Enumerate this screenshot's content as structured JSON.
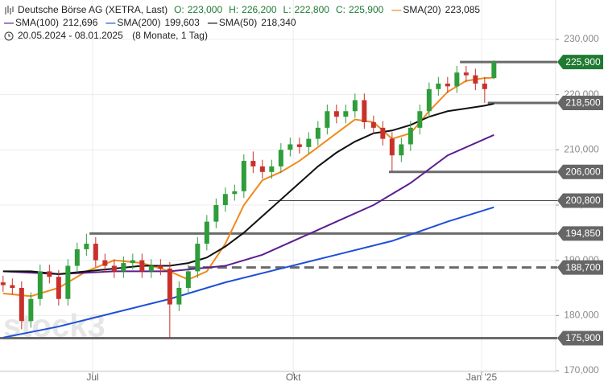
{
  "chart_data": {
    "type": "candlestick",
    "header": {
      "instrument": "Deutsche Börse AG (XETRA, Last)",
      "quote": [
        {
          "label": "O:",
          "value": 223000,
          "text": "223,000"
        },
        {
          "label": "H:",
          "value": 226200,
          "text": "226,200"
        },
        {
          "label": "L:",
          "value": 222800,
          "text": "222,800"
        },
        {
          "label": "C:",
          "value": 225900,
          "text": "225,900"
        }
      ],
      "range": "20.05.2024 - 08.01.2025",
      "span": "(8 Monate, 1 Tag)"
    },
    "watermark": "stock3",
    "xlim": [
      -1,
      179
    ],
    "xticks": [
      {
        "value": 29,
        "label": "Jul"
      },
      {
        "value": 94,
        "label": "Okt"
      },
      {
        "value": 155,
        "label": "Jan '25"
      }
    ],
    "ylim": [
      170000,
      230000
    ],
    "yticks": [
      {
        "value": 170000,
        "label": "170,000"
      },
      {
        "value": 180000,
        "label": "180,000"
      },
      {
        "value": 190000,
        "label": "190,000"
      },
      {
        "value": 200000,
        "label": "200,000"
      },
      {
        "value": 210000,
        "label": "210,000"
      },
      {
        "value": 220000,
        "label": "220,000"
      },
      {
        "value": 230000,
        "label": "230,000"
      }
    ],
    "up_color": "#2e9d3a",
    "down_color": "#c8312b",
    "x": [
      0,
      3,
      6,
      9,
      12,
      15,
      18,
      21,
      24,
      27,
      30,
      33,
      36,
      39,
      42,
      45,
      48,
      51,
      54,
      57,
      60,
      63,
      66,
      69,
      72,
      75,
      78,
      81,
      84,
      87,
      90,
      93,
      96,
      99,
      102,
      105,
      108,
      111,
      114,
      117,
      120,
      123,
      126,
      129,
      132,
      135,
      138,
      141,
      144,
      147,
      150,
      153,
      156,
      159
    ],
    "open": [
      186000,
      185500,
      185000,
      179000,
      183000,
      188000,
      187000,
      183000,
      189000,
      192000,
      193000,
      190000,
      189000,
      188000,
      189500,
      190000,
      188000,
      189000,
      188500,
      182000,
      185000,
      188000,
      193000,
      197000,
      200000,
      202000,
      202500,
      208000,
      207000,
      206000,
      207000,
      210000,
      211000,
      210500,
      212000,
      214000,
      217000,
      216000,
      217000,
      219000,
      215000,
      214000,
      212000,
      209000,
      211000,
      214000,
      217000,
      221000,
      222000,
      221500,
      224000,
      223500,
      222000,
      223000
    ],
    "high": [
      187200,
      186700,
      186200,
      184200,
      189200,
      189200,
      188200,
      190200,
      193200,
      194800,
      194200,
      191200,
      190200,
      190700,
      191200,
      191200,
      190200,
      190200,
      189700,
      186200,
      189200,
      194200,
      198200,
      201200,
      203200,
      203700,
      209200,
      209700,
      208200,
      208200,
      211200,
      212200,
      212200,
      213200,
      215200,
      218200,
      218200,
      218200,
      220200,
      220200,
      216200,
      215200,
      213200,
      212200,
      215200,
      218200,
      222200,
      223200,
      223200,
      225200,
      225200,
      224700,
      223200,
      226200
    ],
    "low": [
      184300,
      183800,
      177500,
      177800,
      181800,
      185800,
      181800,
      181800,
      187800,
      190800,
      188800,
      187800,
      186800,
      186800,
      188300,
      186800,
      186800,
      187300,
      175900,
      180800,
      183800,
      186800,
      191800,
      195800,
      198800,
      200800,
      201300,
      205800,
      204800,
      204800,
      205800,
      208800,
      209300,
      209300,
      210800,
      212800,
      214800,
      214800,
      215800,
      213800,
      212800,
      210800,
      206000,
      207800,
      209800,
      212800,
      215800,
      219800,
      220300,
      220300,
      222300,
      220800,
      218500,
      222800
    ],
    "close": [
      185500,
      185000,
      179000,
      183000,
      188000,
      187000,
      183000,
      189000,
      192000,
      193000,
      190000,
      189000,
      188000,
      189500,
      190000,
      188000,
      189000,
      188500,
      182000,
      185000,
      188000,
      193000,
      197000,
      200000,
      202000,
      202500,
      208000,
      207000,
      206000,
      207000,
      210000,
      211000,
      210500,
      212000,
      214000,
      217000,
      216000,
      217000,
      219000,
      215000,
      214000,
      212000,
      209000,
      211000,
      214000,
      217000,
      221000,
      222000,
      221500,
      224000,
      223500,
      222000,
      221000,
      225900
    ],
    "series": [
      {
        "name": "SMA(20)",
        "color": "#f08a1c",
        "x": [
          0,
          9,
          18,
          27,
          36,
          45,
          54,
          60,
          66,
          72,
          78,
          84,
          90,
          96,
          102,
          108,
          114,
          120,
          126,
          132,
          138,
          144,
          150,
          156,
          159
        ],
        "values": [
          184000,
          183500,
          185000,
          188000,
          190000,
          189500,
          188000,
          186500,
          188000,
          193000,
          200000,
          204500,
          206000,
          208000,
          210500,
          213000,
          215500,
          215000,
          212000,
          213000,
          217000,
          220500,
          222500,
          223000,
          223085
        ],
        "value_labels": [
          null,
          null,
          null,
          null,
          null,
          null,
          null,
          null,
          null,
          null,
          null,
          null,
          null,
          null,
          null,
          null,
          null,
          null,
          null,
          null,
          null,
          null,
          null,
          null,
          "223,085"
        ]
      },
      {
        "name": "SMA(100)",
        "color": "#5b1f8f",
        "x": [
          0,
          18,
          36,
          54,
          72,
          84,
          96,
          108,
          120,
          132,
          144,
          159
        ],
        "values": [
          188000,
          187500,
          188000,
          188000,
          189000,
          191000,
          194000,
          197000,
          200000,
          204000,
          209000,
          212696
        ],
        "value_labels": [
          null,
          null,
          null,
          null,
          null,
          null,
          null,
          null,
          null,
          null,
          null,
          "212,696"
        ]
      },
      {
        "name": "SMA(200)",
        "color": "#1f4fd6",
        "x": [
          0,
          18,
          36,
          54,
          72,
          90,
          108,
          126,
          144,
          159
        ],
        "values": [
          176000,
          178000,
          180500,
          183000,
          186000,
          188500,
          191000,
          193500,
          197000,
          199603
        ],
        "value_labels": [
          null,
          null,
          null,
          null,
          null,
          null,
          null,
          null,
          null,
          "199,603"
        ]
      },
      {
        "name": "SMA(50)",
        "color": "#111111",
        "x": [
          0,
          9,
          18,
          27,
          36,
          45,
          54,
          60,
          66,
          72,
          78,
          84,
          90,
          96,
          102,
          108,
          114,
          120,
          126,
          132,
          138,
          144,
          150,
          156,
          159
        ],
        "values": [
          188000,
          188000,
          187500,
          188000,
          188500,
          189000,
          189000,
          189500,
          190500,
          192500,
          195000,
          198000,
          201000,
          204000,
          207000,
          209500,
          211500,
          213000,
          213500,
          214500,
          216000,
          217000,
          217500,
          218000,
          218340
        ],
        "value_labels": [
          null,
          null,
          null,
          null,
          null,
          null,
          null,
          null,
          null,
          null,
          null,
          null,
          null,
          null,
          null,
          null,
          null,
          null,
          null,
          null,
          null,
          null,
          null,
          null,
          "218,340"
        ]
      }
    ],
    "levels": [
      {
        "value": 225900,
        "label": "225,900",
        "start": 148,
        "dashed": false,
        "color": "#6a6a6a",
        "label_color": "#1f7a32"
      },
      {
        "value": 218500,
        "label": "218,500",
        "start": 157,
        "dashed": false,
        "color": "#6a6a6a",
        "label_color": "#666666"
      },
      {
        "value": 206000,
        "label": "206,000",
        "start": 125,
        "dashed": false,
        "color": "#6a6a6a",
        "label_color": "#666666"
      },
      {
        "value": 200800,
        "label": "200,800",
        "start": 86,
        "dashed": false,
        "color": "#444444",
        "label_color": "#666666"
      },
      {
        "value": 194850,
        "label": "194,850",
        "start": 28,
        "dashed": false,
        "color": "#6a6a6a",
        "label_color": "#666666"
      },
      {
        "value": 188700,
        "label": "188,700",
        "start": 60,
        "dashed": true,
        "color": "#6a6a6a",
        "label_color": "#666666"
      },
      {
        "value": 175900,
        "label": "175,900",
        "start": -1,
        "dashed": false,
        "color": "#6a6a6a",
        "label_color": "#666666"
      }
    ]
  }
}
